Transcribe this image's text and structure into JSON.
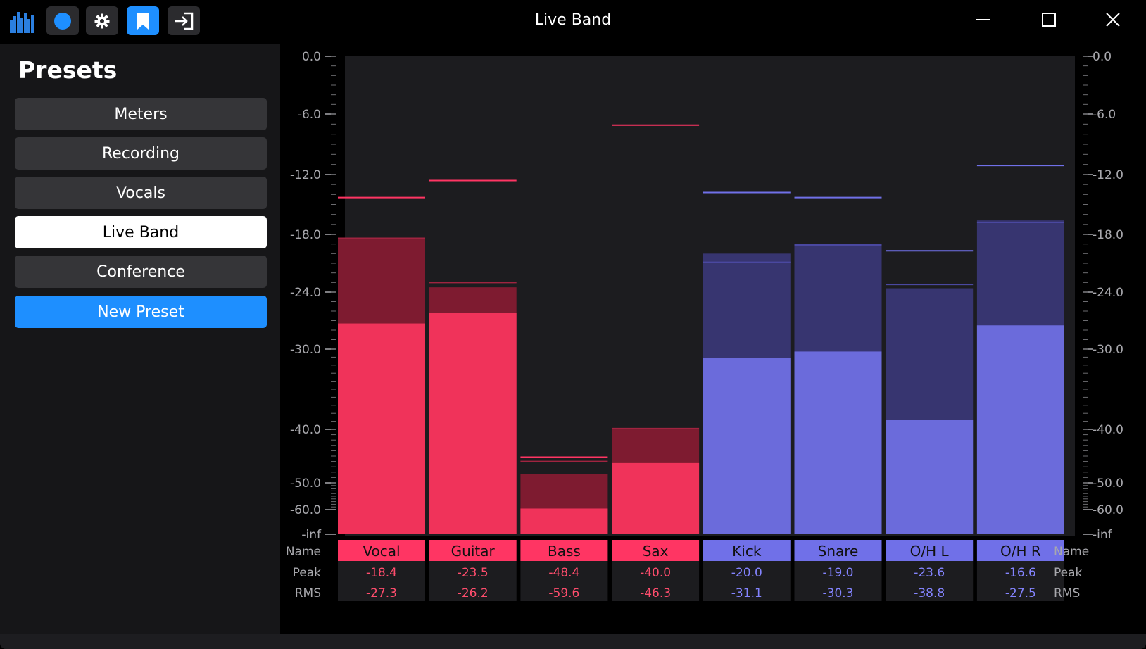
{
  "window": {
    "title": "Live Band",
    "minimize_icon": "minimize-icon",
    "maximize_icon": "maximize-icon",
    "close_icon": "close-icon"
  },
  "toolbar": {
    "app_icon": "level-meter-app-icon",
    "buttons": [
      {
        "icon": "record-icon",
        "active": false
      },
      {
        "icon": "gear-icon",
        "active": false
      },
      {
        "icon": "bookmark-icon",
        "active": true
      },
      {
        "icon": "exit-icon",
        "active": false
      }
    ]
  },
  "sidebar": {
    "heading": "Presets",
    "presets": [
      {
        "label": "Meters",
        "selected": false
      },
      {
        "label": "Recording",
        "selected": false
      },
      {
        "label": "Vocals",
        "selected": false
      },
      {
        "label": "Live Band",
        "selected": true
      },
      {
        "label": "Conference",
        "selected": false
      }
    ],
    "new_preset_label": "New Preset"
  },
  "colors": {
    "red_bar": "#f0335a",
    "red_dim": "#7e1b30",
    "red_label": "#ff3563",
    "red_text": "#ff4d6d",
    "blue_bar": "#6b6bdb",
    "blue_dim": "#373570",
    "blue_label": "#7070e8",
    "blue_text": "#8484ff",
    "plot_bg": "#1c1c1f"
  },
  "chart_data": {
    "type": "bar",
    "title": "",
    "scale_labels": [
      "0.0",
      "-6.0",
      "-12.0",
      "-18.0",
      "-24.0",
      "-30.0",
      "-40.0",
      "-50.0",
      "-60.0",
      "-inf"
    ],
    "row_labels": {
      "name": "Name",
      "peak": "Peak",
      "rms": "RMS"
    },
    "categories": [
      "Vocal",
      "Guitar",
      "Bass",
      "Sax",
      "Kick",
      "Snare",
      "O/H L",
      "O/H R"
    ],
    "series": [
      {
        "name": "Peak",
        "values": [
          -18.4,
          -23.5,
          -48.4,
          -40.0,
          -20.0,
          -19.0,
          -23.6,
          -16.6
        ]
      },
      {
        "name": "RMS",
        "values": [
          -27.3,
          -26.2,
          -59.6,
          -46.3,
          -31.1,
          -30.3,
          -38.8,
          -27.5
        ]
      }
    ],
    "channels": [
      {
        "name": "Vocal",
        "group": "red",
        "peak": "-18.4",
        "rms": "-27.3",
        "peak_db": -18.4,
        "rms_db": -27.3,
        "hold_peak_db": -14.3,
        "hold_rms_db": -18.4
      },
      {
        "name": "Guitar",
        "group": "red",
        "peak": "-23.5",
        "rms": "-26.2",
        "peak_db": -23.5,
        "rms_db": -26.2,
        "hold_peak_db": -12.6,
        "hold_rms_db": -23.0
      },
      {
        "name": "Bass",
        "group": "red",
        "peak": "-48.4",
        "rms": "-59.6",
        "peak_db": -48.4,
        "rms_db": -59.6,
        "hold_peak_db": -45.2,
        "hold_rms_db": -46.0
      },
      {
        "name": "Sax",
        "group": "red",
        "peak": "-40.0",
        "rms": "-46.3",
        "peak_db": -40.0,
        "rms_db": -46.3,
        "hold_peak_db": -7.1,
        "hold_rms_db": -39.9
      },
      {
        "name": "Kick",
        "group": "blue",
        "peak": "-20.0",
        "rms": "-31.1",
        "peak_db": -20.0,
        "rms_db": -31.1,
        "hold_peak_db": -13.8,
        "hold_rms_db": -20.9
      },
      {
        "name": "Snare",
        "group": "blue",
        "peak": "-19.0",
        "rms": "-30.3",
        "peak_db": -19.0,
        "rms_db": -30.3,
        "hold_peak_db": -14.3,
        "hold_rms_db": -19.1
      },
      {
        "name": "O/H L",
        "group": "blue",
        "peak": "-23.6",
        "rms": "-38.8",
        "peak_db": -23.6,
        "rms_db": -38.8,
        "hold_peak_db": -19.7,
        "hold_rms_db": -23.2
      },
      {
        "name": "O/H R",
        "group": "blue",
        "peak": "-16.6",
        "rms": "-27.5",
        "peak_db": -16.6,
        "rms_db": -27.5,
        "hold_peak_db": -11.1,
        "hold_rms_db": -16.8
      }
    ],
    "ylim": [
      -80,
      0
    ],
    "grid": false
  }
}
